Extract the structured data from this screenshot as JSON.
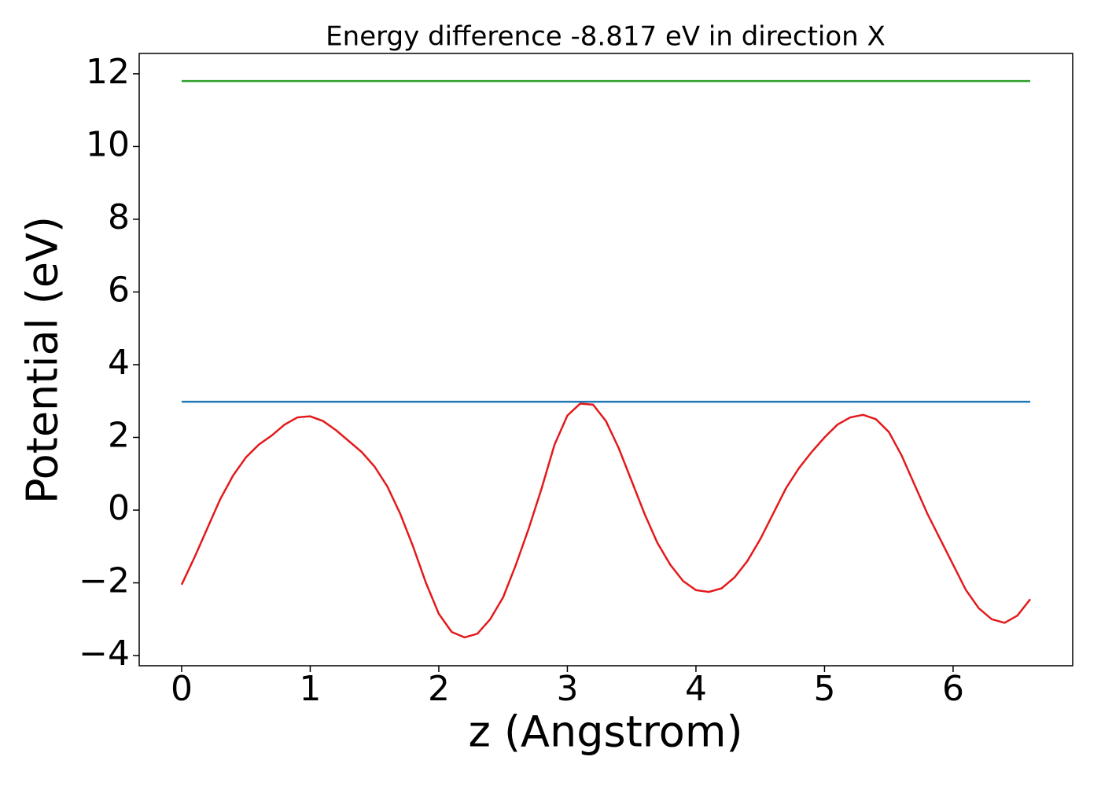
{
  "chart_data": {
    "type": "line",
    "title": "Energy difference -8.817 eV in direction X",
    "xlabel": "z (Angstrom)",
    "ylabel": "Potential (eV)",
    "xlim": [
      -0.33,
      6.93
    ],
    "ylim": [
      -4.28,
      12.56
    ],
    "xticks": [
      0,
      1,
      2,
      3,
      4,
      5,
      6
    ],
    "yticks": [
      {
        "value": -4,
        "label": "−4"
      },
      {
        "value": -2,
        "label": "−2"
      },
      0,
      2,
      4,
      6,
      8,
      10,
      12
    ],
    "grid": false,
    "series": [
      {
        "color": "#e31a1c",
        "x": [
          0,
          0.1,
          0.2,
          0.3,
          0.4,
          0.5,
          0.6,
          0.7,
          0.8,
          0.9,
          1.0,
          1.1,
          1.2,
          1.3,
          1.4,
          1.5,
          1.6,
          1.7,
          1.8,
          1.9,
          2.0,
          2.1,
          2.2,
          2.3,
          2.4,
          2.5,
          2.6,
          2.7,
          2.8,
          2.9,
          3.0,
          3.1,
          3.2,
          3.3,
          3.4,
          3.5,
          3.6,
          3.7,
          3.8,
          3.9,
          4.0,
          4.1,
          4.2,
          4.3,
          4.4,
          4.5,
          4.6,
          4.7,
          4.8,
          4.9,
          5.0,
          5.1,
          5.2,
          5.3,
          5.4,
          5.5,
          5.6,
          5.7,
          5.8,
          5.9,
          6.0,
          6.1,
          6.2,
          6.3,
          6.4,
          6.5,
          6.6
        ],
        "values": [
          -2.05,
          -1.3,
          -0.5,
          0.3,
          0.95,
          1.45,
          1.8,
          2.05,
          2.35,
          2.55,
          2.58,
          2.45,
          2.2,
          1.9,
          1.6,
          1.2,
          0.65,
          -0.1,
          -1.0,
          -2.0,
          -2.85,
          -3.35,
          -3.5,
          -3.4,
          -3.0,
          -2.4,
          -1.5,
          -0.5,
          0.6,
          1.8,
          2.6,
          2.93,
          2.9,
          2.45,
          1.7,
          0.8,
          -0.1,
          -0.9,
          -1.5,
          -1.95,
          -2.2,
          -2.25,
          -2.15,
          -1.85,
          -1.4,
          -0.8,
          -0.1,
          0.6,
          1.15,
          1.6,
          2.0,
          2.35,
          2.55,
          2.62,
          2.5,
          2.15,
          1.5,
          0.7,
          -0.1,
          -0.8,
          -1.5,
          -2.2,
          -2.7,
          -3.0,
          -3.1,
          -2.9,
          -2.45
        ]
      },
      {
        "color": "#1f77b4",
        "x": [
          0,
          6.6
        ],
        "values": [
          2.98,
          2.98
        ]
      },
      {
        "color": "#2ca02c",
        "x": [
          0,
          6.6
        ],
        "values": [
          11.8,
          11.8
        ]
      }
    ]
  }
}
